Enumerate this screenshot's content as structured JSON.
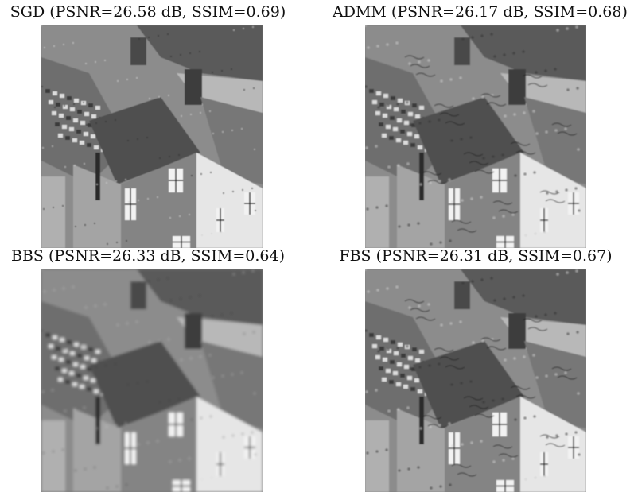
{
  "panels": [
    {
      "caption": "SGD (PSNR=26.58 dB, SSIM=0.69)",
      "style": "sharp"
    },
    {
      "caption": "ADMM (PSNR=26.17 dB, SSIM=0.68)",
      "style": "artifacts"
    },
    {
      "caption": "BBS (PSNR=26.33 dB, SSIM=0.64)",
      "style": "smooth"
    },
    {
      "caption": "FBS (PSNR=26.31 dB, SSIM=0.67)",
      "style": "artifacts"
    }
  ]
}
